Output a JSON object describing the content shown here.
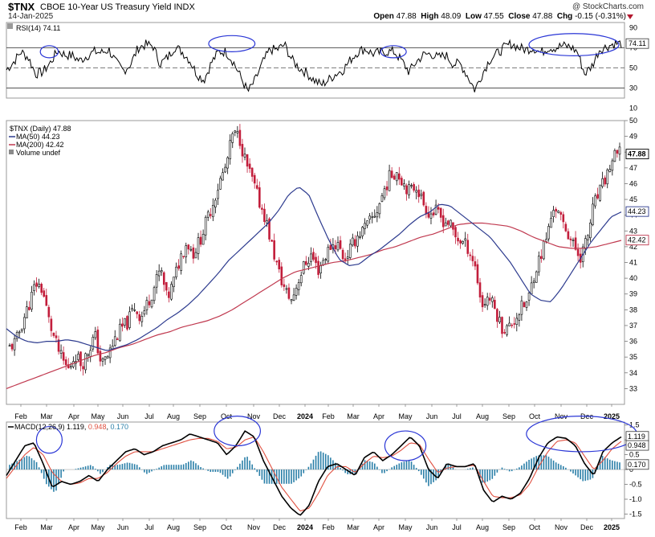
{
  "header": {
    "symbol": "$TNX",
    "name": "CBOE 10-Year US Treasury Yield INDX",
    "date": "14-Jan-2025",
    "credit": "@ StockCharts.com",
    "open_label": "Open",
    "open": "47.88",
    "high_label": "High",
    "high": "48.09",
    "low_label": "Low",
    "low": "47.55",
    "close_label": "Close",
    "close": "47.88",
    "chg_label": "Chg",
    "chg": "-0.15 (-0.31%)",
    "down_color": "#b3172e"
  },
  "chart_data": [
    {
      "id": "rsi",
      "type": "line",
      "title": "RSI(14) 74.11",
      "current": 74.11,
      "current_label": "74.11",
      "ylim": [
        20,
        95
      ],
      "yticks": [
        "90",
        "70",
        "50",
        "30",
        "10"
      ],
      "overbought": 70,
      "oversold": 30,
      "midline": 50,
      "months": [
        "Feb",
        "Mar",
        "Apr",
        "May",
        "Jun",
        "Jul",
        "Aug",
        "Sep",
        "Oct",
        "Nov",
        "Dec",
        "2024",
        "Feb",
        "Mar",
        "Apr",
        "May",
        "Jun",
        "Jul",
        "Aug",
        "Sep",
        "Oct",
        "Nov",
        "Dec",
        "2025"
      ],
      "values": [
        48,
        56,
        66,
        60,
        44,
        46,
        55,
        67,
        63,
        62,
        57,
        62,
        66,
        65,
        68,
        55,
        47,
        54,
        70,
        73,
        72,
        54,
        60,
        71,
        66,
        58,
        44,
        38,
        55,
        66,
        66,
        56,
        41,
        26,
        38,
        55,
        68,
        68,
        73,
        58,
        50,
        45,
        38,
        33,
        38,
        44,
        48,
        58,
        66,
        69,
        64,
        65,
        66,
        66,
        57,
        46,
        56,
        63,
        64,
        60,
        63,
        54,
        54,
        42,
        28,
        44,
        58,
        64,
        70,
        74,
        70,
        68,
        70,
        65,
        70,
        70,
        72,
        71,
        66,
        44,
        52,
        68,
        71,
        74,
        74
      ],
      "highlights": [
        {
          "month_index": 1.1,
          "level": 66,
          "w": 0.7,
          "h": 12
        },
        {
          "month_index": 8.2,
          "level": 74,
          "w": 1.8,
          "h": 16
        },
        {
          "month_index": 14.55,
          "level": 66,
          "w": 1.0,
          "h": 12
        },
        {
          "month_index": 21.5,
          "level": 73,
          "w": 3.5,
          "h": 22
        }
      ],
      "colors": {
        "line": "#000000",
        "highlight": "#2a36d6"
      }
    },
    {
      "id": "price",
      "type": "candlestick",
      "legend": [
        "$TNX (Daily) 47.88",
        "MA(50) 44.23",
        "MA(200) 42.42",
        "Volume undef"
      ],
      "ylim": [
        32,
        50
      ],
      "yticks": [
        50,
        49,
        48,
        47,
        46,
        45,
        44,
        43,
        42,
        41,
        40,
        39,
        38,
        37,
        36,
        35,
        34,
        33
      ],
      "tags": [
        {
          "label": "47.88",
          "value": 47.88,
          "style": "bold"
        },
        {
          "label": "44.23",
          "value": 44.23,
          "style": "blue"
        },
        {
          "label": "42.42",
          "value": 42.42,
          "style": "red"
        }
      ],
      "months": [
        "Feb",
        "Mar",
        "Apr",
        "May",
        "Jun",
        "Jul",
        "Aug",
        "Sep",
        "Oct",
        "Nov",
        "Dec",
        "2024",
        "Feb",
        "Mar",
        "Apr",
        "May",
        "Jun",
        "Jul",
        "Aug",
        "Sep",
        "Oct",
        "Nov",
        "Dec",
        "2025"
      ],
      "close": [
        35.6,
        36.0,
        37.3,
        38.4,
        39.7,
        39.3,
        37.3,
        35.9,
        34.8,
        34.2,
        35.2,
        34.5,
        35.4,
        36.4,
        34.5,
        35.1,
        36.1,
        36.8,
        37.2,
        38.2,
        37.5,
        38.4,
        39.4,
        40.6,
        38.6,
        39.8,
        41.3,
        42.3,
        41.6,
        42.4,
        43.6,
        44.8,
        46.1,
        47.1,
        49.1,
        49.0,
        47.3,
        46.2,
        44.9,
        43.8,
        42.0,
        40.4,
        39.2,
        38.6,
        39.9,
        40.9,
        41.5,
        40.5,
        41.3,
        42.1,
        42.2,
        41.2,
        41.9,
        42.7,
        43.1,
        43.6,
        44.3,
        45.5,
        46.5,
        46.8,
        46.1,
        45.5,
        45.9,
        44.8,
        44.1,
        44.2,
        43.7,
        43.5,
        42.6,
        42.3,
        41.9,
        40.7,
        38.2,
        38.9,
        38.0,
        36.9,
        36.8,
        37.4,
        38.1,
        38.5,
        40.4,
        41.5,
        42.8,
        44.7,
        43.7,
        43.0,
        42.0,
        41.4,
        42.4,
        44.6,
        45.5,
        46.5,
        47.6,
        47.9
      ],
      "ma50": [
        36.8,
        36.3,
        36.0,
        35.9,
        36.0,
        36.0,
        36.1,
        36.0,
        35.8,
        35.6,
        35.4,
        35.6,
        35.8,
        36.1,
        36.5,
        36.9,
        37.4,
        37.8,
        38.3,
        38.9,
        39.6,
        40.3,
        41.1,
        41.7,
        42.3,
        42.9,
        43.5,
        44.3,
        45.3,
        45.8,
        45.3,
        43.8,
        42.4,
        41.2,
        40.8,
        40.9,
        41.4,
        41.8,
        42.3,
        42.8,
        43.4,
        43.9,
        44.2,
        44.7,
        44.6,
        44.1,
        43.6,
        43.1,
        42.6,
        41.8,
        41.0,
        40.0,
        39.0,
        38.6,
        38.5,
        39.3,
        40.3,
        41.3,
        42.3,
        43.1,
        43.9,
        44.2
      ],
      "ma200": [
        33.0,
        33.3,
        33.6,
        33.9,
        34.2,
        34.5,
        34.8,
        35.1,
        35.3,
        35.6,
        35.8,
        36.1,
        36.4,
        36.6,
        36.9,
        37.1,
        37.3,
        37.6,
        38.0,
        38.5,
        39.0,
        39.5,
        40.0,
        40.4,
        40.6,
        40.8,
        41.0,
        41.1,
        41.3,
        41.5,
        41.8,
        42.0,
        42.3,
        42.6,
        42.8,
        43.1,
        43.4,
        43.5,
        43.5,
        43.4,
        43.3,
        43.0,
        42.6,
        42.3,
        42.0,
        41.9,
        41.9,
        42.0,
        42.2,
        42.4
      ],
      "colors": {
        "up": "#000000",
        "down": "#c21d3a",
        "ma50": "#2c3a8e",
        "ma200": "#c0394f"
      }
    },
    {
      "id": "macd",
      "type": "line",
      "title": "MACD(12,26,9)",
      "macd_value": "1.119",
      "signal_value": "0.948",
      "hist_value": "0.170",
      "ylim": [
        -1.65,
        1.6
      ],
      "yticks": [
        "1.5",
        "1.0",
        "0.5",
        "0",
        "-0.5",
        "-1.0",
        "-1.5"
      ],
      "tags": [
        {
          "label": "1.119",
          "value": 1.119
        },
        {
          "label": "0.948",
          "value": 0.948
        },
        {
          "label": "0.170",
          "value": 0.17
        }
      ],
      "months": [
        "Feb",
        "Mar",
        "Apr",
        "May",
        "Jun",
        "Jul",
        "Aug",
        "Sep",
        "Oct",
        "Nov",
        "Dec",
        "2024",
        "Feb",
        "Mar",
        "Apr",
        "May",
        "Jun",
        "Jul",
        "Aug",
        "Sep",
        "Oct",
        "Nov",
        "Dec",
        "2025"
      ],
      "macd": [
        -0.2,
        0.3,
        0.8,
        0.9,
        0.2,
        -0.6,
        -0.4,
        -0.5,
        -0.4,
        -0.2,
        -0.4,
        0.0,
        0.3,
        0.6,
        0.7,
        0.5,
        0.6,
        0.8,
        0.9,
        1.0,
        1.2,
        1.1,
        1.0,
        0.9,
        0.5,
        0.8,
        1.3,
        1.1,
        0.3,
        -0.3,
        -0.9,
        -1.3,
        -1.55,
        -1.2,
        -0.4,
        0.1,
        0.2,
        0.0,
        -0.2,
        0.4,
        0.6,
        0.3,
        0.5,
        0.8,
        1.1,
        0.8,
        0.0,
        -0.3,
        0.2,
        0.1,
        0.1,
        0.2,
        -0.7,
        -1.1,
        -0.9,
        -1.0,
        -0.8,
        -0.3,
        0.4,
        0.9,
        1.1,
        1.05,
        0.8,
        0.2,
        -0.2,
        0.6,
        0.9,
        1.1
      ],
      "signal": [
        -0.3,
        0.1,
        0.5,
        0.75,
        0.5,
        -0.1,
        -0.4,
        -0.5,
        -0.45,
        -0.3,
        -0.3,
        -0.1,
        0.2,
        0.45,
        0.6,
        0.6,
        0.6,
        0.7,
        0.8,
        0.9,
        1.0,
        1.05,
        1.05,
        0.95,
        0.7,
        0.75,
        1.0,
        1.1,
        0.6,
        0.0,
        -0.6,
        -1.0,
        -1.4,
        -1.3,
        -0.8,
        -0.2,
        0.1,
        0.1,
        -0.1,
        0.2,
        0.45,
        0.4,
        0.45,
        0.65,
        0.9,
        0.85,
        0.35,
        -0.1,
        0.05,
        0.1,
        0.1,
        0.15,
        -0.4,
        -0.9,
        -0.95,
        -0.95,
        -0.85,
        -0.5,
        0.1,
        0.6,
        0.95,
        1.0,
        0.9,
        0.45,
        0.0,
        0.3,
        0.7,
        0.95
      ],
      "highlights": [
        {
          "month_index": 1.1,
          "level": 1.0,
          "w": 1.0,
          "h": 0.9
        },
        {
          "month_index": 8.4,
          "level": 1.3,
          "w": 1.8,
          "h": 1.0
        },
        {
          "month_index": 15.0,
          "level": 0.8,
          "w": 1.6,
          "h": 1.0
        },
        {
          "month_index": 21.8,
          "level": 1.2,
          "w": 4.3,
          "h": 1.2
        }
      ],
      "colors": {
        "macd": "#000000",
        "signal": "#e05040",
        "hist": "#2a7fa8",
        "highlight": "#2a36d6"
      }
    }
  ]
}
